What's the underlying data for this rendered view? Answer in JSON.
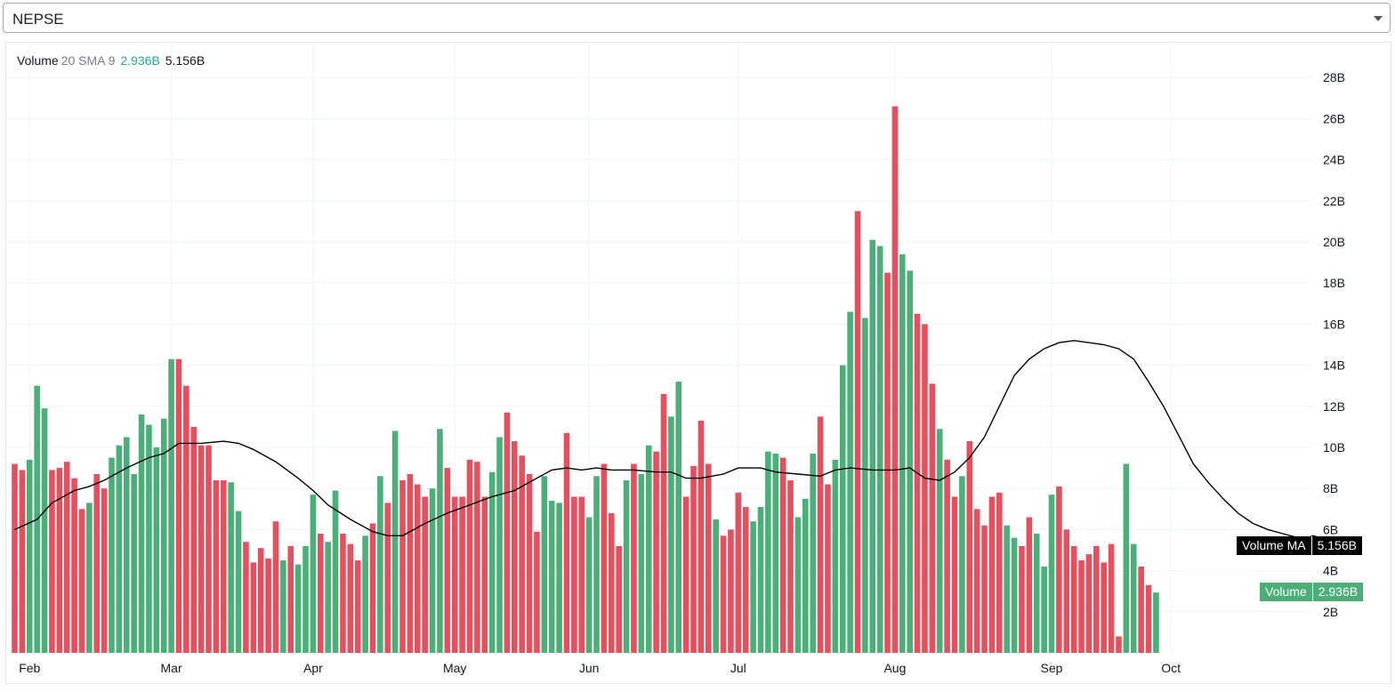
{
  "selector": {
    "value": "NEPSE"
  },
  "legend": {
    "name": "Volume",
    "params": "20 SMA 9",
    "last_volume": "2.936B",
    "last_ma": "5.156B"
  },
  "tags": {
    "ma_label": "Volume MA",
    "ma_value": "5.156B",
    "vol_label": "Volume",
    "vol_value": "2.936B"
  },
  "colors": {
    "up": "#4caf7a",
    "down": "#e5505e",
    "ma_line": "#000000",
    "grid": "#f0f3fa",
    "text": "#131722"
  },
  "chart_data": {
    "type": "bar",
    "title": "Volume",
    "y_unit": "B",
    "ylim": [
      0,
      28
    ],
    "y_ticks": [
      2,
      4,
      6,
      8,
      10,
      12,
      14,
      16,
      18,
      20,
      22,
      24,
      26,
      28
    ],
    "y_tick_labels": [
      "2B",
      "4B",
      "6B",
      "8B",
      "10B",
      "12B",
      "14B",
      "16B",
      "18B",
      "20B",
      "22B",
      "24B",
      "26B",
      "28B"
    ],
    "x_tick_labels": [
      "Feb",
      "Mar",
      "Apr",
      "May",
      "Jun",
      "Jul",
      "Aug",
      "Sep",
      "Oct"
    ],
    "x_tick_index": [
      2,
      21,
      40,
      59,
      77,
      97,
      118,
      139,
      155
    ],
    "grid": true,
    "series": [
      {
        "name": "Volume",
        "values": [
          {
            "v": 9.2,
            "d": "down"
          },
          {
            "v": 8.9,
            "d": "down"
          },
          {
            "v": 9.4,
            "d": "up"
          },
          {
            "v": 13.0,
            "d": "up"
          },
          {
            "v": 11.9,
            "d": "up"
          },
          {
            "v": 8.9,
            "d": "down"
          },
          {
            "v": 9.0,
            "d": "down"
          },
          {
            "v": 9.3,
            "d": "down"
          },
          {
            "v": 8.5,
            "d": "down"
          },
          {
            "v": 7.0,
            "d": "down"
          },
          {
            "v": 7.3,
            "d": "up"
          },
          {
            "v": 8.7,
            "d": "down"
          },
          {
            "v": 8.0,
            "d": "down"
          },
          {
            "v": 9.5,
            "d": "up"
          },
          {
            "v": 10.1,
            "d": "up"
          },
          {
            "v": 10.5,
            "d": "up"
          },
          {
            "v": 8.7,
            "d": "up"
          },
          {
            "v": 11.6,
            "d": "up"
          },
          {
            "v": 11.1,
            "d": "up"
          },
          {
            "v": 10.0,
            "d": "up"
          },
          {
            "v": 11.4,
            "d": "up"
          },
          {
            "v": 14.3,
            "d": "up"
          },
          {
            "v": 14.3,
            "d": "down"
          },
          {
            "v": 13.0,
            "d": "down"
          },
          {
            "v": 11.0,
            "d": "down"
          },
          {
            "v": 10.1,
            "d": "down"
          },
          {
            "v": 10.1,
            "d": "down"
          },
          {
            "v": 8.4,
            "d": "down"
          },
          {
            "v": 8.4,
            "d": "down"
          },
          {
            "v": 8.3,
            "d": "up"
          },
          {
            "v": 6.9,
            "d": "up"
          },
          {
            "v": 5.4,
            "d": "down"
          },
          {
            "v": 4.4,
            "d": "down"
          },
          {
            "v": 5.1,
            "d": "down"
          },
          {
            "v": 4.6,
            "d": "down"
          },
          {
            "v": 6.4,
            "d": "down"
          },
          {
            "v": 4.5,
            "d": "up"
          },
          {
            "v": 5.2,
            "d": "down"
          },
          {
            "v": 4.3,
            "d": "up"
          },
          {
            "v": 5.2,
            "d": "up"
          },
          {
            "v": 7.7,
            "d": "up"
          },
          {
            "v": 5.8,
            "d": "down"
          },
          {
            "v": 5.4,
            "d": "up"
          },
          {
            "v": 7.9,
            "d": "up"
          },
          {
            "v": 5.8,
            "d": "down"
          },
          {
            "v": 5.3,
            "d": "down"
          },
          {
            "v": 4.5,
            "d": "down"
          },
          {
            "v": 5.7,
            "d": "up"
          },
          {
            "v": 6.3,
            "d": "down"
          },
          {
            "v": 8.6,
            "d": "up"
          },
          {
            "v": 7.3,
            "d": "down"
          },
          {
            "v": 10.8,
            "d": "up"
          },
          {
            "v": 8.4,
            "d": "down"
          },
          {
            "v": 8.7,
            "d": "down"
          },
          {
            "v": 8.2,
            "d": "down"
          },
          {
            "v": 7.6,
            "d": "down"
          },
          {
            "v": 8.0,
            "d": "up"
          },
          {
            "v": 10.9,
            "d": "up"
          },
          {
            "v": 9.0,
            "d": "down"
          },
          {
            "v": 7.6,
            "d": "down"
          },
          {
            "v": 7.6,
            "d": "down"
          },
          {
            "v": 9.4,
            "d": "down"
          },
          {
            "v": 9.3,
            "d": "down"
          },
          {
            "v": 7.6,
            "d": "down"
          },
          {
            "v": 8.8,
            "d": "up"
          },
          {
            "v": 10.5,
            "d": "up"
          },
          {
            "v": 11.7,
            "d": "down"
          },
          {
            "v": 10.3,
            "d": "down"
          },
          {
            "v": 9.6,
            "d": "down"
          },
          {
            "v": 8.7,
            "d": "down"
          },
          {
            "v": 5.9,
            "d": "down"
          },
          {
            "v": 8.6,
            "d": "up"
          },
          {
            "v": 7.4,
            "d": "up"
          },
          {
            "v": 7.3,
            "d": "up"
          },
          {
            "v": 10.7,
            "d": "down"
          },
          {
            "v": 7.6,
            "d": "down"
          },
          {
            "v": 7.6,
            "d": "down"
          },
          {
            "v": 6.6,
            "d": "up"
          },
          {
            "v": 8.6,
            "d": "up"
          },
          {
            "v": 9.2,
            "d": "down"
          },
          {
            "v": 6.8,
            "d": "down"
          },
          {
            "v": 5.2,
            "d": "down"
          },
          {
            "v": 8.4,
            "d": "up"
          },
          {
            "v": 9.2,
            "d": "down"
          },
          {
            "v": 8.7,
            "d": "up"
          },
          {
            "v": 10.1,
            "d": "up"
          },
          {
            "v": 9.8,
            "d": "down"
          },
          {
            "v": 12.6,
            "d": "down"
          },
          {
            "v": 11.5,
            "d": "up"
          },
          {
            "v": 13.2,
            "d": "up"
          },
          {
            "v": 7.6,
            "d": "down"
          },
          {
            "v": 9.1,
            "d": "down"
          },
          {
            "v": 11.3,
            "d": "down"
          },
          {
            "v": 9.2,
            "d": "down"
          },
          {
            "v": 6.5,
            "d": "up"
          },
          {
            "v": 5.7,
            "d": "down"
          },
          {
            "v": 6.0,
            "d": "down"
          },
          {
            "v": 7.8,
            "d": "down"
          },
          {
            "v": 7.1,
            "d": "down"
          },
          {
            "v": 6.4,
            "d": "up"
          },
          {
            "v": 7.1,
            "d": "up"
          },
          {
            "v": 9.8,
            "d": "up"
          },
          {
            "v": 9.7,
            "d": "up"
          },
          {
            "v": 9.5,
            "d": "down"
          },
          {
            "v": 8.4,
            "d": "down"
          },
          {
            "v": 6.6,
            "d": "up"
          },
          {
            "v": 7.5,
            "d": "up"
          },
          {
            "v": 9.7,
            "d": "up"
          },
          {
            "v": 11.5,
            "d": "down"
          },
          {
            "v": 8.2,
            "d": "down"
          },
          {
            "v": 9.4,
            "d": "up"
          },
          {
            "v": 14.0,
            "d": "up"
          },
          {
            "v": 16.6,
            "d": "up"
          },
          {
            "v": 21.5,
            "d": "down"
          },
          {
            "v": 16.3,
            "d": "up"
          },
          {
            "v": 20.1,
            "d": "up"
          },
          {
            "v": 19.8,
            "d": "up"
          },
          {
            "v": 18.5,
            "d": "down"
          },
          {
            "v": 26.6,
            "d": "down"
          },
          {
            "v": 19.4,
            "d": "up"
          },
          {
            "v": 18.6,
            "d": "up"
          },
          {
            "v": 16.5,
            "d": "down"
          },
          {
            "v": 16.0,
            "d": "down"
          },
          {
            "v": 13.1,
            "d": "down"
          },
          {
            "v": 10.9,
            "d": "up"
          },
          {
            "v": 9.4,
            "d": "down"
          },
          {
            "v": 7.6,
            "d": "down"
          },
          {
            "v": 8.6,
            "d": "up"
          },
          {
            "v": 10.3,
            "d": "down"
          },
          {
            "v": 7.0,
            "d": "down"
          },
          {
            "v": 6.2,
            "d": "down"
          },
          {
            "v": 7.6,
            "d": "down"
          },
          {
            "v": 7.8,
            "d": "down"
          },
          {
            "v": 6.2,
            "d": "up"
          },
          {
            "v": 5.6,
            "d": "up"
          },
          {
            "v": 5.2,
            "d": "down"
          },
          {
            "v": 6.6,
            "d": "down"
          },
          {
            "v": 5.8,
            "d": "up"
          },
          {
            "v": 4.2,
            "d": "up"
          },
          {
            "v": 7.7,
            "d": "up"
          },
          {
            "v": 8.1,
            "d": "down"
          },
          {
            "v": 6.0,
            "d": "down"
          },
          {
            "v": 5.2,
            "d": "down"
          },
          {
            "v": 4.5,
            "d": "down"
          },
          {
            "v": 4.8,
            "d": "down"
          },
          {
            "v": 5.2,
            "d": "down"
          },
          {
            "v": 4.4,
            "d": "down"
          },
          {
            "v": 5.3,
            "d": "down"
          },
          {
            "v": 0.8,
            "d": "down"
          },
          {
            "v": 9.2,
            "d": "up"
          },
          {
            "v": 5.3,
            "d": "up"
          },
          {
            "v": 4.2,
            "d": "down"
          },
          {
            "v": 3.3,
            "d": "down"
          },
          {
            "v": 2.936,
            "d": "up"
          }
        ]
      },
      {
        "name": "Volume MA",
        "type": "line",
        "points": [
          [
            0,
            6.0
          ],
          [
            3,
            6.5
          ],
          [
            5,
            7.3
          ],
          [
            8,
            7.9
          ],
          [
            10,
            8.1
          ],
          [
            12,
            8.4
          ],
          [
            15,
            9.0
          ],
          [
            18,
            9.5
          ],
          [
            20,
            9.7
          ],
          [
            22,
            10.2
          ],
          [
            25,
            10.2
          ],
          [
            28,
            10.3
          ],
          [
            30,
            10.2
          ],
          [
            32,
            9.9
          ],
          [
            35,
            9.3
          ],
          [
            38,
            8.5
          ],
          [
            40,
            7.9
          ],
          [
            42,
            7.2
          ],
          [
            45,
            6.5
          ],
          [
            48,
            5.9
          ],
          [
            50,
            5.7
          ],
          [
            52,
            5.7
          ],
          [
            55,
            6.3
          ],
          [
            58,
            6.8
          ],
          [
            61,
            7.2
          ],
          [
            64,
            7.6
          ],
          [
            67,
            7.9
          ],
          [
            70,
            8.5
          ],
          [
            72,
            8.9
          ],
          [
            74,
            9.0
          ],
          [
            76,
            8.9
          ],
          [
            78,
            9.0
          ],
          [
            80,
            8.9
          ],
          [
            83,
            8.9
          ],
          [
            86,
            8.8
          ],
          [
            88,
            8.8
          ],
          [
            90,
            8.5
          ],
          [
            92,
            8.5
          ],
          [
            95,
            8.7
          ],
          [
            97,
            9.0
          ],
          [
            100,
            9.0
          ],
          [
            102,
            8.8
          ],
          [
            105,
            8.7
          ],
          [
            108,
            8.6
          ],
          [
            110,
            8.9
          ],
          [
            112,
            9.0
          ],
          [
            115,
            8.9
          ],
          [
            118,
            8.9
          ],
          [
            120,
            9.0
          ],
          [
            122,
            8.5
          ],
          [
            124,
            8.4
          ],
          [
            126,
            8.8
          ],
          [
            128,
            9.5
          ],
          [
            130,
            10.5
          ],
          [
            132,
            12.0
          ],
          [
            134,
            13.5
          ],
          [
            136,
            14.3
          ],
          [
            138,
            14.8
          ],
          [
            140,
            15.1
          ],
          [
            142,
            15.2
          ],
          [
            144,
            15.1
          ],
          [
            146,
            15.0
          ],
          [
            148,
            14.8
          ],
          [
            150,
            14.3
          ],
          [
            152,
            13.2
          ],
          [
            154,
            12.0
          ],
          [
            156,
            10.6
          ],
          [
            158,
            9.2
          ],
          [
            160,
            8.3
          ],
          [
            162,
            7.5
          ],
          [
            164,
            6.8
          ],
          [
            166,
            6.3
          ],
          [
            168,
            6.0
          ],
          [
            170,
            5.8
          ],
          [
            172,
            5.6
          ],
          [
            173,
            5.5
          ],
          [
            174,
            5.7
          ],
          [
            175,
            5.6
          ],
          [
            177,
            5.4
          ],
          [
            179,
            5.156
          ]
        ]
      }
    ]
  }
}
